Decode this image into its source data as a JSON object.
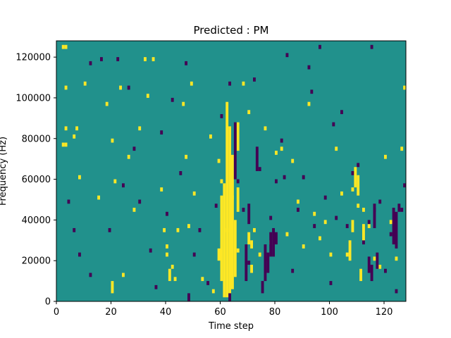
{
  "chart_data": {
    "type": "heatmap",
    "title": "Predicted : PM",
    "xlabel": "Time step",
    "ylabel": "Frequency (Hz)",
    "xlim": [
      0,
      128
    ],
    "ylim": [
      0,
      128000
    ],
    "x_ticks": [
      0,
      20,
      40,
      60,
      80,
      100,
      120
    ],
    "y_ticks": [
      0,
      20000,
      40000,
      60000,
      80000,
      100000,
      120000
    ],
    "n_time": 128,
    "n_freq": 128,
    "grid": false,
    "colormap": "viridis",
    "colors": {
      "background": "#21918c",
      "high": "#fde725",
      "low": "#440154"
    },
    "default_value": 0,
    "value_levels": [
      -1,
      0,
      1
    ],
    "cells": [
      [
        2,
        124000,
        1
      ],
      [
        3,
        124000,
        1
      ],
      [
        2,
        76000,
        1
      ],
      [
        3,
        76000,
        1
      ],
      [
        3,
        84000,
        1
      ],
      [
        3,
        104000,
        1
      ],
      [
        6,
        80000,
        1
      ],
      [
        7,
        84000,
        1
      ],
      [
        8,
        60000,
        1
      ],
      [
        10,
        106000,
        1
      ],
      [
        15,
        50000,
        1
      ],
      [
        18,
        96000,
        1
      ],
      [
        20,
        78000,
        1
      ],
      [
        21,
        58000,
        1
      ],
      [
        23,
        104000,
        1
      ],
      [
        24,
        12000,
        1
      ],
      [
        26,
        70000,
        1
      ],
      [
        28,
        44000,
        1
      ],
      [
        30,
        84000,
        1
      ],
      [
        32,
        118000,
        1
      ],
      [
        33,
        100000,
        1
      ],
      [
        35,
        118000,
        1
      ],
      [
        38,
        54000,
        1
      ],
      [
        39,
        34000,
        1
      ],
      [
        40,
        26000,
        1
      ],
      [
        40,
        22000,
        1
      ],
      [
        42,
        16000,
        1
      ],
      [
        43,
        10000,
        1
      ],
      [
        44,
        34000,
        1
      ],
      [
        46,
        96000,
        1
      ],
      [
        47,
        70000,
        1
      ],
      [
        48,
        36000,
        1
      ],
      [
        49,
        106000,
        1
      ],
      [
        50,
        52000,
        1
      ],
      [
        53,
        10000,
        1
      ],
      [
        56,
        80000,
        1
      ],
      [
        57,
        4000,
        1
      ],
      [
        59,
        68000,
        1
      ],
      [
        60,
        58000,
        1
      ],
      [
        62,
        34000,
        1
      ],
      [
        64,
        50000,
        1
      ],
      [
        66,
        24000,
        1
      ],
      [
        68,
        106000,
        1
      ],
      [
        70,
        92000,
        1
      ],
      [
        72,
        34000,
        1
      ],
      [
        74,
        22000,
        1
      ],
      [
        76,
        84000,
        1
      ],
      [
        78,
        28000,
        1
      ],
      [
        80,
        72000,
        1
      ],
      [
        82,
        74000,
        1
      ],
      [
        84,
        32000,
        1
      ],
      [
        86,
        68000,
        1
      ],
      [
        88,
        48000,
        1
      ],
      [
        90,
        26000,
        1
      ],
      [
        92,
        96000,
        1
      ],
      [
        94,
        42000,
        1
      ],
      [
        96,
        30000,
        1
      ],
      [
        98,
        38000,
        1
      ],
      [
        100,
        22000,
        1
      ],
      [
        102,
        74000,
        1
      ],
      [
        104,
        52000,
        1
      ],
      [
        106,
        22000,
        1
      ],
      [
        108,
        54000,
        1
      ],
      [
        110,
        46000,
        1
      ],
      [
        112,
        44000,
        1
      ],
      [
        114,
        36000,
        1
      ],
      [
        116,
        20000,
        1
      ],
      [
        118,
        16000,
        1
      ],
      [
        120,
        70000,
        1
      ],
      [
        122,
        38000,
        1
      ],
      [
        124,
        20000,
        1
      ],
      [
        126,
        74000,
        1
      ],
      [
        127,
        104000,
        1
      ],
      [
        4,
        48000,
        -1
      ],
      [
        6,
        34000,
        -1
      ],
      [
        8,
        22000,
        -1
      ],
      [
        12,
        12000,
        -1
      ],
      [
        16,
        118000,
        -1
      ],
      [
        19,
        34000,
        -1
      ],
      [
        22,
        118000,
        -1
      ],
      [
        24,
        56000,
        -1
      ],
      [
        26,
        104000,
        -1
      ],
      [
        28,
        74000,
        -1
      ],
      [
        30,
        48000,
        -1
      ],
      [
        34,
        24000,
        -1
      ],
      [
        36,
        6000,
        -1
      ],
      [
        38,
        82000,
        -1
      ],
      [
        40,
        42000,
        -1
      ],
      [
        42,
        98000,
        -1
      ],
      [
        45,
        62000,
        -1
      ],
      [
        47,
        116000,
        -1
      ],
      [
        50,
        22000,
        -1
      ],
      [
        52,
        34000,
        -1
      ],
      [
        55,
        8000,
        -1
      ],
      [
        58,
        46000,
        -1
      ],
      [
        60,
        90000,
        -1
      ],
      [
        63,
        106000,
        -1
      ],
      [
        66,
        58000,
        -1
      ],
      [
        68,
        44000,
        -1
      ],
      [
        70,
        18000,
        -1
      ],
      [
        72,
        108000,
        -1
      ],
      [
        74,
        64000,
        -1
      ],
      [
        76,
        20000,
        -1
      ],
      [
        78,
        40000,
        -1
      ],
      [
        80,
        58000,
        -1
      ],
      [
        82,
        78000,
        -1
      ],
      [
        84,
        120000,
        -1
      ],
      [
        86,
        14000,
        -1
      ],
      [
        88,
        44000,
        -1
      ],
      [
        90,
        60000,
        -1
      ],
      [
        92,
        114000,
        -1
      ],
      [
        94,
        36000,
        -1
      ],
      [
        96,
        124000,
        -1
      ],
      [
        98,
        50000,
        -1
      ],
      [
        100,
        8000,
        -1
      ],
      [
        102,
        40000,
        -1
      ],
      [
        104,
        92000,
        -1
      ],
      [
        106,
        36000,
        -1
      ],
      [
        108,
        62000,
        -1
      ],
      [
        110,
        66000,
        -1
      ],
      [
        112,
        28000,
        -1
      ],
      [
        114,
        38000,
        -1
      ],
      [
        116,
        44000,
        -1
      ],
      [
        118,
        48000,
        -1
      ],
      [
        120,
        14000,
        -1
      ],
      [
        122,
        32000,
        -1
      ],
      [
        124,
        4000,
        -1
      ],
      [
        126,
        44000,
        -1
      ],
      [
        127,
        56000,
        -1
      ],
      [
        115,
        124000,
        -1
      ],
      [
        12,
        116000,
        -1
      ],
      [
        93,
        102000,
        -1
      ],
      [
        83,
        60000,
        -1
      ],
      [
        101,
        86000,
        -1
      ]
    ],
    "columns": [
      [
        61,
        2000,
        58000,
        1
      ],
      [
        62,
        2000,
        98000,
        1
      ],
      [
        63,
        2000,
        86000,
        1
      ],
      [
        64,
        6000,
        72000,
        1
      ],
      [
        60,
        10000,
        52000,
        1
      ],
      [
        65,
        12000,
        40000,
        1
      ],
      [
        66,
        44000,
        56000,
        1
      ],
      [
        59,
        20000,
        26000,
        1
      ],
      [
        70,
        28000,
        34000,
        1
      ],
      [
        71,
        26000,
        30000,
        1
      ],
      [
        41,
        10000,
        16000,
        1
      ],
      [
        20,
        4000,
        10000,
        1
      ],
      [
        109,
        56000,
        66000,
        1
      ],
      [
        110,
        52000,
        62000,
        1
      ],
      [
        108,
        34000,
        40000,
        1
      ],
      [
        107,
        20000,
        30000,
        1
      ],
      [
        111,
        10000,
        16000,
        1
      ],
      [
        112,
        30000,
        38000,
        1
      ],
      [
        71,
        14000,
        18000,
        1
      ],
      [
        66,
        74000,
        88000,
        1
      ],
      [
        63,
        0,
        4000,
        -1
      ],
      [
        65,
        60000,
        88000,
        -1
      ],
      [
        69,
        10000,
        28000,
        -1
      ],
      [
        70,
        38000,
        48000,
        -1
      ],
      [
        73,
        64000,
        76000,
        -1
      ],
      [
        76,
        10000,
        28000,
        -1
      ],
      [
        77,
        14000,
        24000,
        -1
      ],
      [
        78,
        22000,
        34000,
        -1
      ],
      [
        79,
        22000,
        36000,
        -1
      ],
      [
        80,
        28000,
        34000,
        -1
      ],
      [
        75,
        4000,
        10000,
        -1
      ],
      [
        48,
        0,
        4000,
        -1
      ],
      [
        114,
        14000,
        22000,
        -1
      ],
      [
        115,
        10000,
        18000,
        -1
      ],
      [
        116,
        36000,
        48000,
        -1
      ],
      [
        117,
        16000,
        24000,
        -1
      ],
      [
        123,
        28000,
        46000,
        -1
      ],
      [
        124,
        26000,
        44000,
        -1
      ],
      [
        125,
        44000,
        48000,
        -1
      ]
    ]
  }
}
